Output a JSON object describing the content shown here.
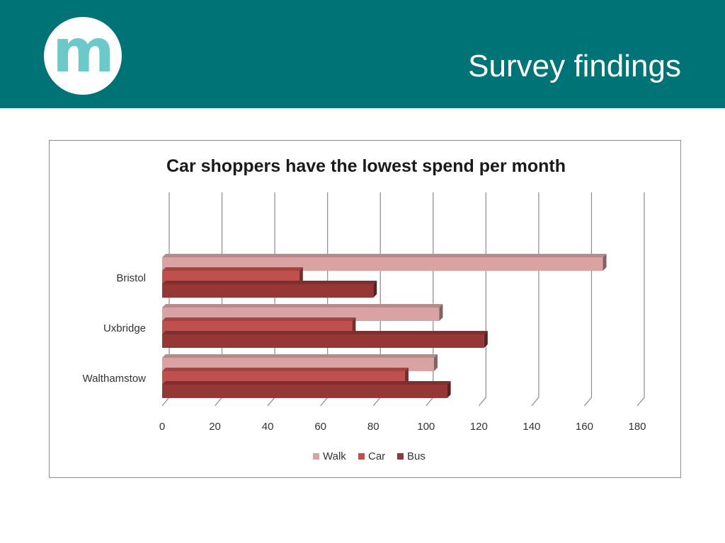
{
  "slide": {
    "title": "Survey findings",
    "logo_letter": "m"
  },
  "colors": {
    "header_bg": "#007377",
    "logo_text": "#6cc9c9",
    "walk": "#d9a3a3",
    "car": "#c0504d",
    "bus": "#953735"
  },
  "chart_data": {
    "type": "bar",
    "orientation": "horizontal",
    "style": "3d-clustered",
    "title": "Car shoppers have the lowest spend per month",
    "categories": [
      "Bristol",
      "Uxbridge",
      "Walthamstow"
    ],
    "series": [
      {
        "name": "Walk",
        "values": [
          167,
          105,
          103
        ],
        "color": "#d9a3a3"
      },
      {
        "name": "Car",
        "values": [
          52,
          72,
          92
        ],
        "color": "#c0504d"
      },
      {
        "name": "Bus",
        "values": [
          80,
          122,
          108
        ],
        "color": "#953735"
      }
    ],
    "xlim": [
      0,
      180
    ],
    "xticks": [
      "0",
      "20",
      "40",
      "60",
      "80",
      "100",
      "120",
      "140",
      "160",
      "180"
    ],
    "xlabel": "",
    "ylabel": "",
    "grid": true,
    "legend_position": "bottom"
  }
}
